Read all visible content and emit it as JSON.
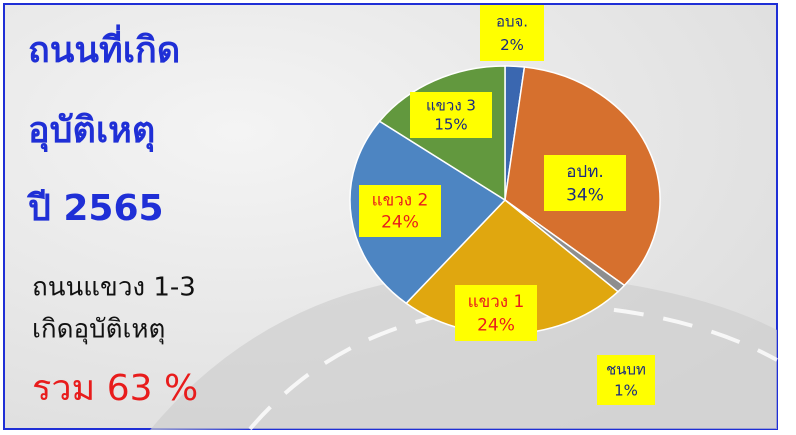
{
  "chart_data": {
    "type": "pie",
    "title_lines": [
      "ถนนที่เกิด",
      "อุบัติเหตุ",
      "ปี 2565"
    ],
    "note_lines": [
      "ถนนแขวง 1-3",
      "เกิดอุบัติเหตุ"
    ],
    "total_label": "รวม 63 %",
    "categories": [
      "อบจ.",
      "อปท.",
      "ชนบท",
      "แขวง 1",
      "แขวง 2",
      "แขวง 3"
    ],
    "values": [
      2,
      34,
      1,
      24,
      24,
      15
    ],
    "value_labels": [
      "2%",
      "34%",
      "1%",
      "24%",
      "24%",
      "15%"
    ],
    "colors": [
      "#3a67b0",
      "#d6702e",
      "#8e8e8e",
      "#e0a70f",
      "#4d85c2",
      "#62983e"
    ],
    "label_colors": [
      "#1a2a80",
      "#1a2a80",
      "#1a2a80",
      "#e81c1c",
      "#e81c1c",
      "#1a2a80"
    ]
  }
}
